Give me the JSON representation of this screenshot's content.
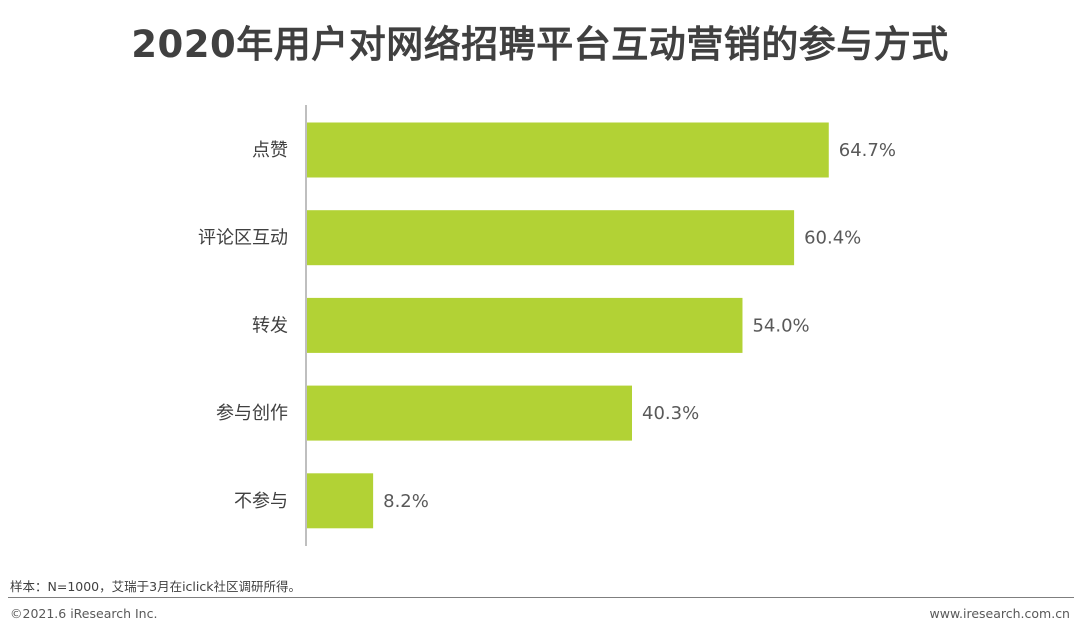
{
  "header": {
    "title": "2020年用户对网络招聘平台互动营销的参与方式"
  },
  "chart_data": {
    "type": "bar",
    "orientation": "horizontal",
    "categories": [
      "点赞",
      "评论区互动",
      "转发",
      "参与创作",
      "不参与"
    ],
    "values": [
      64.7,
      60.4,
      54.0,
      40.3,
      8.2
    ],
    "value_labels": [
      "64.7%",
      "60.4%",
      "54.0%",
      "40.3%",
      "8.2%"
    ],
    "unit": "%",
    "xlim": [
      0,
      100
    ],
    "grid": false,
    "colors": {
      "bar": "#b2d235",
      "axis": "#7f7f7f"
    }
  },
  "footer": {
    "note": "样本：N=1000，艾瑞于3月在iclick社区调研所得。",
    "copyright": "©2021.6 iResearch Inc.",
    "website": "www.iresearch.com.cn"
  }
}
